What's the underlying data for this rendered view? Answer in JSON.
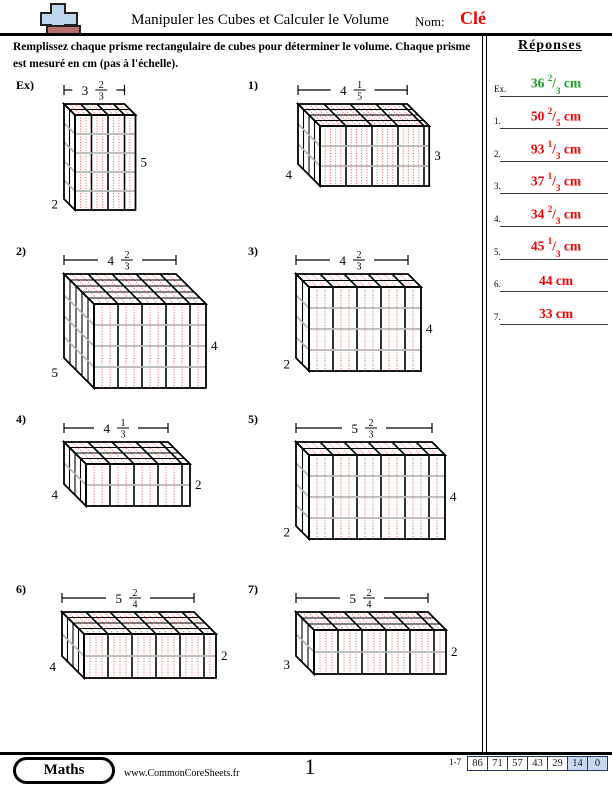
{
  "header": {
    "title": "Manipuler les Cubes et Calculer le Volume",
    "name_label": "Nom:",
    "name_value": "Clé"
  },
  "instructions": "Remplissez chaque prisme rectangulaire de cubes pour déterminer le volume. Chaque prisme est mesuré en cm (pas à l'échelle).",
  "answers": {
    "title": "Réponses",
    "items": [
      {
        "label": "Ex.",
        "whole": "36",
        "num": "2",
        "den": "3",
        "unit": "cm",
        "color": "#18a024"
      },
      {
        "label": "1.",
        "whole": "50",
        "num": "2",
        "den": "5",
        "unit": "cm",
        "color": "#ee0404"
      },
      {
        "label": "2.",
        "whole": "93",
        "num": "1",
        "den": "3",
        "unit": "cm",
        "color": "#ee0404"
      },
      {
        "label": "3.",
        "whole": "37",
        "num": "1",
        "den": "3",
        "unit": "cm",
        "color": "#ee0404"
      },
      {
        "label": "4.",
        "whole": "34",
        "num": "2",
        "den": "3",
        "unit": "cm",
        "color": "#ee0404"
      },
      {
        "label": "5.",
        "whole": "45",
        "num": "1",
        "den": "3",
        "unit": "cm",
        "color": "#ee0404"
      },
      {
        "label": "6.",
        "whole": "44",
        "num": "",
        "den": "",
        "unit": "cm",
        "color": "#ee0404"
      },
      {
        "label": "7.",
        "whole": "33",
        "num": "",
        "den": "",
        "unit": "cm",
        "color": "#ee0404"
      }
    ]
  },
  "problems": [
    {
      "id": "ex",
      "label": "Ex)",
      "width": {
        "whole": 3,
        "num": 2,
        "den": 3
      },
      "height": 5,
      "depth": 2
    },
    {
      "id": "p1",
      "label": "1)",
      "width": {
        "whole": 4,
        "num": 1,
        "den": 5
      },
      "height": 3,
      "depth": 4
    },
    {
      "id": "p2",
      "label": "2)",
      "width": {
        "whole": 4,
        "num": 2,
        "den": 3
      },
      "height": 4,
      "depth": 5
    },
    {
      "id": "p3",
      "label": "3)",
      "width": {
        "whole": 4,
        "num": 2,
        "den": 3
      },
      "height": 4,
      "depth": 2
    },
    {
      "id": "p4",
      "label": "4)",
      "width": {
        "whole": 4,
        "num": 1,
        "den": 3
      },
      "height": 2,
      "depth": 4
    },
    {
      "id": "p5",
      "label": "5)",
      "width": {
        "whole": 5,
        "num": 2,
        "den": 3
      },
      "height": 4,
      "depth": 2
    },
    {
      "id": "p6",
      "label": "6)",
      "width": {
        "whole": 5,
        "num": 2,
        "den": 4
      },
      "height": 2,
      "depth": 4
    },
    {
      "id": "p7",
      "label": "7)",
      "width": {
        "whole": 5,
        "num": 2,
        "den": 4
      },
      "height": 2,
      "depth": 3
    }
  ],
  "footer": {
    "brand": "Maths",
    "url": "www.CommonCoreSheets.fr",
    "page": "1",
    "score_label": "1-7",
    "score_cells": [
      "86",
      "71",
      "57",
      "43",
      "29",
      "14",
      "0"
    ],
    "score_highlight_from": 5
  },
  "colors": {
    "name_red": "#ee0404",
    "cube_red": "#ff4d4d",
    "grid_gray": "#b4b4b4",
    "score_border": "#203864",
    "score_fill": "#c7d9f1",
    "logo_blue": "#bdd7ee",
    "logo_brown": "#b96f6f"
  }
}
